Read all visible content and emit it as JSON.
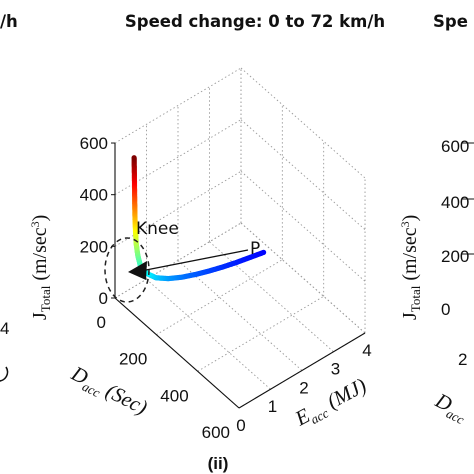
{
  "chart_data": {
    "type": "scatter",
    "panel_label": "(ii)",
    "title": "Speed change: 0 to 72 km/h",
    "left_fragments": {
      "title_tail": "/h",
      "tick": "4"
    },
    "right_fragments": {
      "title_head": "Spe",
      "z_ticks": [
        "600",
        "400",
        "200",
        "0"
      ],
      "x_tick": "2",
      "axis_main": "J",
      "axis_sub": "Total",
      "axis_unit": "(m/sec",
      "axis_sup": "3",
      "axis_close": ")",
      "daxis_main": "D",
      "daxis_sub": "acc"
    },
    "axes": {
      "z": {
        "main": "J",
        "sub": "Total",
        "unit": "(m/sec",
        "sup": "3",
        "close": ")",
        "ticks": [
          "0",
          "200",
          "400",
          "600"
        ],
        "range": [
          0,
          600
        ]
      },
      "x": {
        "main": "D",
        "sub": "acc",
        "unit": "(Sec)",
        "ticks": [
          "0",
          "200",
          "400",
          "600"
        ],
        "range": [
          0,
          600
        ]
      },
      "y": {
        "main": "E",
        "sub": "acc",
        "unit": "(MJ)",
        "ticks": [
          "0",
          "1",
          "2",
          "3",
          "4"
        ],
        "range": [
          0,
          4
        ]
      }
    },
    "annotations": {
      "knee": "Knee",
      "point": "P"
    },
    "grid": true,
    "colormap": "jet",
    "series": [
      {
        "points": [
          {
            "D": 85,
            "E": 0.05,
            "J": 600
          },
          {
            "D": 86,
            "E": 0.05,
            "J": 540
          },
          {
            "D": 87,
            "E": 0.05,
            "J": 480
          },
          {
            "D": 88,
            "E": 0.05,
            "J": 420
          },
          {
            "D": 89,
            "E": 0.05,
            "J": 370
          },
          {
            "D": 90,
            "E": 0.06,
            "J": 320
          },
          {
            "D": 92,
            "E": 0.07,
            "J": 270
          },
          {
            "D": 95,
            "E": 0.1,
            "J": 225
          },
          {
            "D": 100,
            "E": 0.15,
            "J": 185
          },
          {
            "D": 108,
            "E": 0.3,
            "J": 150
          },
          {
            "D": 115,
            "E": 0.55,
            "J": 120
          },
          {
            "D": 120,
            "E": 0.9,
            "J": 95
          },
          {
            "D": 125,
            "E": 1.3,
            "J": 75
          },
          {
            "D": 130,
            "E": 1.7,
            "J": 60
          },
          {
            "D": 135,
            "E": 2.1,
            "J": 48
          },
          {
            "D": 140,
            "E": 2.5,
            "J": 38
          },
          {
            "D": 145,
            "E": 2.9,
            "J": 30
          },
          {
            "D": 150,
            "E": 3.3,
            "J": 24
          },
          {
            "D": 155,
            "E": 3.7,
            "J": 18
          }
        ]
      }
    ]
  }
}
